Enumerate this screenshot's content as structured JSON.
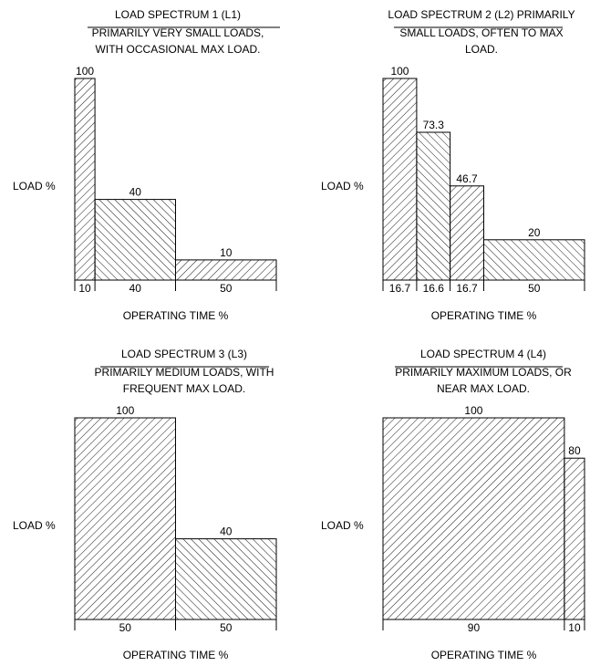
{
  "chart_data": [
    {
      "type": "bar",
      "title": "LOAD SPECTRUM 1 (L1)",
      "subtitle_lines": [
        "PRIMARILY VERY SMALL LOADS,",
        "WITH OCCASIONAL MAX LOAD."
      ],
      "xlabel": "OPERATING TIME %",
      "ylabel": "LOAD %",
      "widths": [
        10,
        40,
        50
      ],
      "width_labels": [
        "10",
        "40",
        "50"
      ],
      "values": [
        100,
        40,
        10
      ],
      "value_labels": [
        "100",
        "40",
        "10"
      ],
      "hatch": [
        "fwd",
        "back",
        "fwd"
      ],
      "ylim": [
        0,
        100
      ]
    },
    {
      "type": "bar",
      "title": "LOAD SPECTRUM 2 (L2) PRIMARILY",
      "subtitle_lines": [
        "SMALL LOADS, OFTEN TO MAX",
        "LOAD."
      ],
      "xlabel": "OPERATING TIME %",
      "ylabel": "LOAD %",
      "widths": [
        16.7,
        16.6,
        16.7,
        50
      ],
      "width_labels": [
        "16.7",
        "16.6",
        "16.7",
        "50"
      ],
      "values": [
        100,
        73.3,
        46.7,
        20
      ],
      "value_labels": [
        "100",
        "73.3",
        "46.7",
        "20"
      ],
      "hatch": [
        "fwd",
        "back",
        "fwd",
        "back"
      ],
      "ylim": [
        0,
        100
      ]
    },
    {
      "type": "bar",
      "title": "LOAD SPECTRUM 3 (L3)",
      "subtitle_lines": [
        "PRIMARILY MEDIUM LOADS, WITH",
        "FREQUENT MAX LOAD."
      ],
      "xlabel": "OPERATING TIME %",
      "ylabel": "LOAD %",
      "widths": [
        50,
        50
      ],
      "width_labels": [
        "50",
        "50"
      ],
      "values": [
        100,
        40
      ],
      "value_labels": [
        "100",
        "40"
      ],
      "hatch": [
        "fwd",
        "back"
      ],
      "ylim": [
        0,
        100
      ]
    },
    {
      "type": "bar",
      "title": "LOAD SPECTRUM 4 (L4)",
      "subtitle_lines": [
        "PRIMARILY MAXIMUM LOADS, OR",
        "NEAR MAX LOAD."
      ],
      "xlabel": "OPERATING TIME %",
      "ylabel": "LOAD %",
      "widths": [
        90,
        10
      ],
      "width_labels": [
        "90",
        "10"
      ],
      "values": [
        100,
        80
      ],
      "value_labels": [
        "100",
        "80"
      ],
      "hatch": [
        "fwd",
        "fwd"
      ],
      "ylim": [
        0,
        100
      ]
    }
  ]
}
